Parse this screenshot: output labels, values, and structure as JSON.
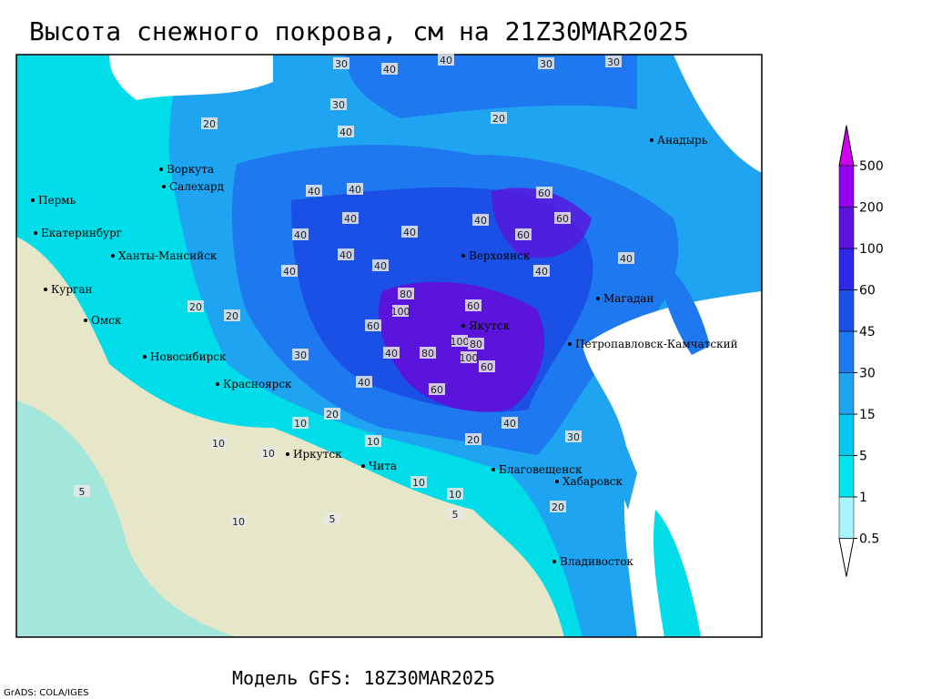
{
  "header": {
    "title": "Высота снежного покрова, см на 21Z30MAR2025"
  },
  "footer": {
    "model": "Модель GFS: 18Z30MAR2025",
    "credit": "GrADS: COLA/IGES"
  },
  "cities": [
    "Воркута",
    "Салехард",
    "Пермь",
    "Екатеринбург",
    "Ханты-Мансийск",
    "Курган",
    "Омск",
    "Новосибирск",
    "Красноярск",
    "Иркутск",
    "Чита",
    "Благовещенск",
    "Хабаровск",
    "Владивосток",
    "Якутск",
    "Верхоянск",
    "Магадан",
    "Петропавловск-Камчатский",
    "Анадырь"
  ],
  "contour_labels": [
    30,
    40,
    40,
    30,
    40,
    30,
    30,
    20,
    20,
    40,
    40,
    40,
    40,
    40,
    40,
    60,
    60,
    60,
    40,
    40,
    40,
    40,
    40,
    80,
    100,
    60,
    60,
    100,
    80,
    100,
    80,
    60,
    60,
    40,
    40,
    30,
    20,
    20,
    10,
    10,
    10,
    10,
    20,
    10,
    10,
    5,
    5,
    5,
    10,
    20,
    30,
    40,
    20
  ],
  "legend": {
    "levels": [
      0.5,
      1,
      5,
      15,
      30,
      45,
      60,
      100,
      200,
      500
    ],
    "colors": [
      "#ffffff",
      "#a8f4ff",
      "#00e6ec",
      "#00c8f0",
      "#1ea4f0",
      "#1e78f0",
      "#1a50e6",
      "#2c28e6",
      "#5a14dc",
      "#9600f0",
      "#d200f0"
    ]
  }
}
